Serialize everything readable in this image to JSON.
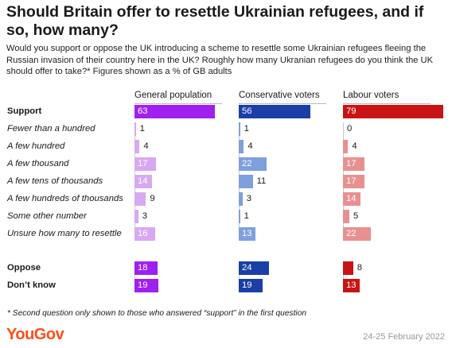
{
  "title": "Should Britain offer to resettle Ukrainian refugees, and if so, how many?",
  "subtitle": "Would you support or oppose the UK introducing a scheme to resettle some Ukrainian refugees fleeing the Russian invasion of their country here in the UK? Roughly how many Ukranian refugees do you think the UK should offer to take?* Figures shown as a % of GB adults",
  "footnote": "* Second question only shown to those who answered “support” in the first question",
  "brand": "YouGov",
  "date": "24-25 February 2022",
  "colors": {
    "general_main": "#a020f0",
    "general_sub": "#d9a8f2",
    "conservative_main": "#1a3fa6",
    "conservative_sub": "#7ea0dc",
    "labour_main": "#c81414",
    "labour_sub": "#e89090",
    "brand": "#ff4e16"
  },
  "chart_data": {
    "type": "bar",
    "orientation": "horizontal",
    "unit": "% of GB adults",
    "categories": [
      "Support",
      "Fewer than a hundred",
      "A few hundred",
      "A few thousand",
      "A few tens of thousands",
      "A few hundreds of thousands",
      "Some other number",
      "Unsure how many to resettle",
      "Oppose",
      "Don’t know"
    ],
    "category_style": [
      "bold",
      "italic",
      "italic",
      "italic",
      "italic",
      "italic",
      "italic",
      "italic",
      "bold",
      "bold"
    ],
    "series": [
      {
        "name": "General population",
        "values": [
          63,
          1,
          4,
          17,
          14,
          9,
          3,
          16,
          18,
          19
        ]
      },
      {
        "name": "Conservative voters",
        "values": [
          56,
          1,
          4,
          22,
          11,
          3,
          1,
          13,
          24,
          19
        ]
      },
      {
        "name": "Labour voters",
        "values": [
          79,
          0,
          4,
          17,
          17,
          14,
          5,
          22,
          8,
          13
        ]
      }
    ]
  }
}
